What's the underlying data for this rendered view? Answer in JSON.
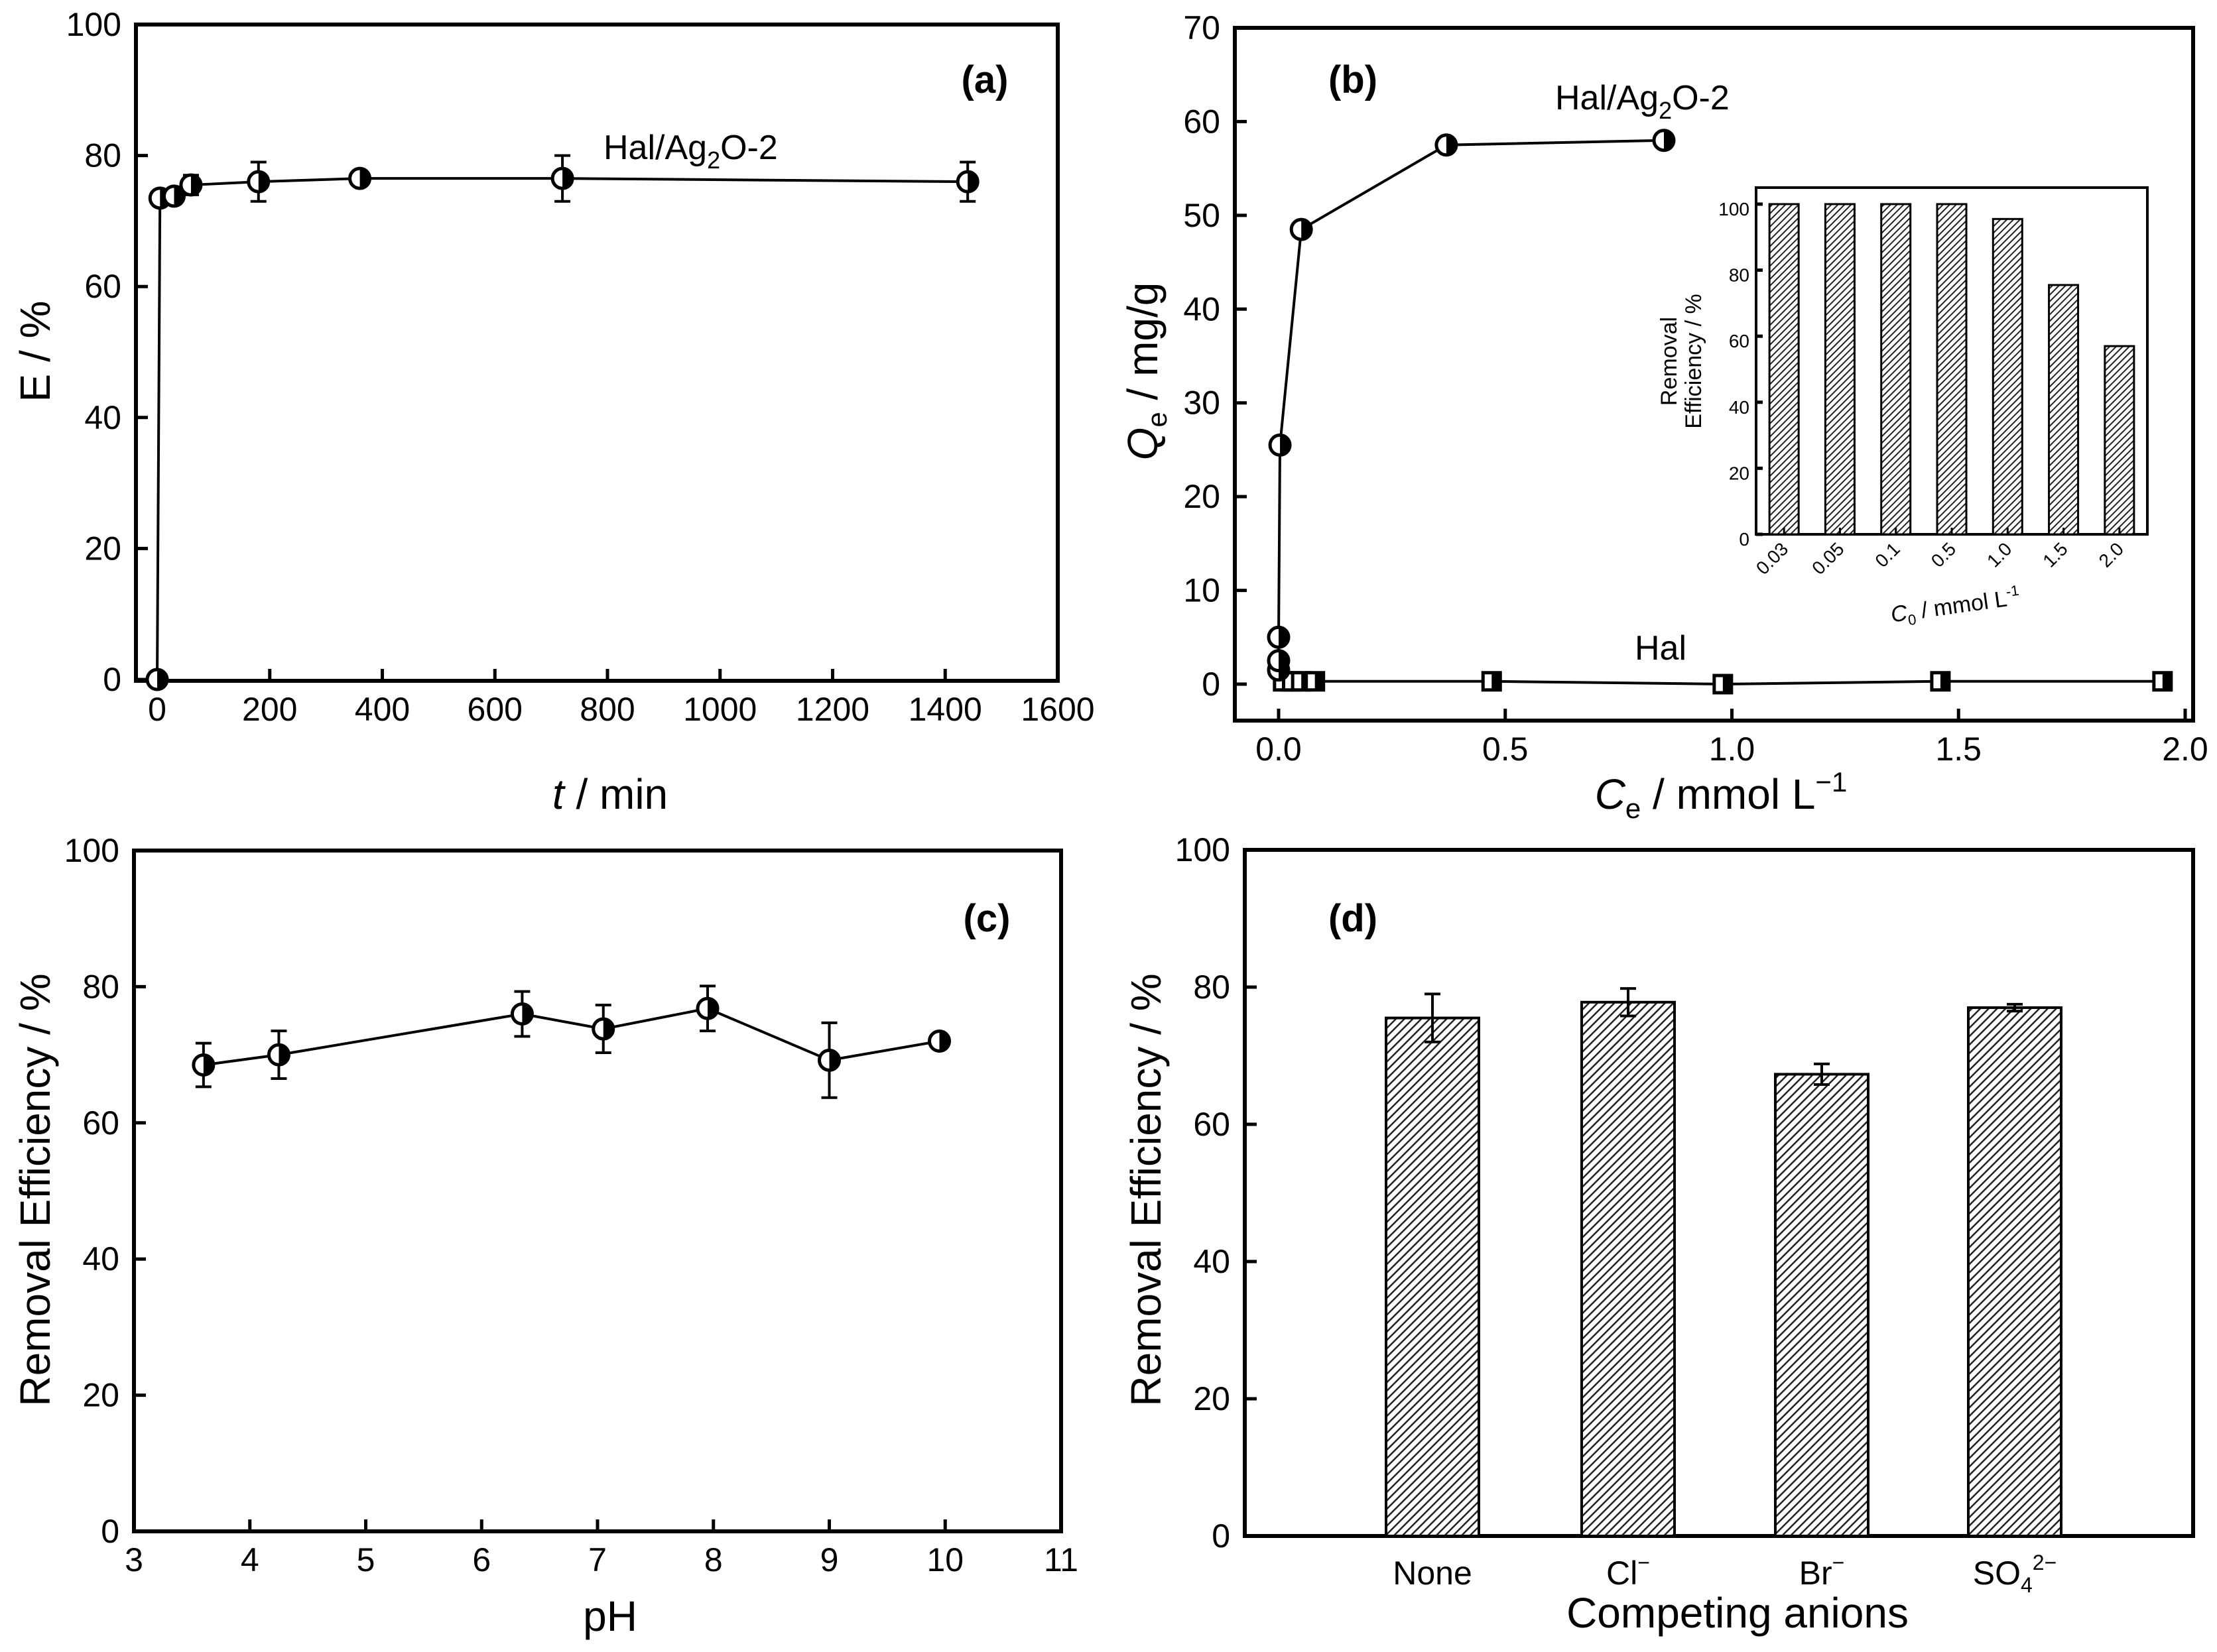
{
  "chart_data": [
    {
      "id": "a",
      "type": "scatter",
      "panel_label": "(a)",
      "xlabel": "t / min",
      "xlabel_italic": "t",
      "xlabel_rest": " / min",
      "ylabel": "E / %",
      "xlim": [
        -50,
        1600
      ],
      "ylim": [
        -5,
        100
      ],
      "xticks": [
        0,
        200,
        400,
        600,
        800,
        1000,
        1200,
        1400,
        1600
      ],
      "yticks": [
        0,
        20,
        40,
        60,
        80,
        100
      ],
      "series": [
        {
          "name": "Hal/Ag2O-2",
          "label_main": "Hal/Ag",
          "label_sub": "2",
          "label_tail": "O-2",
          "x": [
            0,
            5,
            30,
            60,
            180,
            360,
            720,
            1440
          ],
          "y": [
            0,
            73.5,
            73.8,
            75.5,
            76,
            76.5,
            76.5,
            76
          ],
          "err": [
            0,
            1,
            1,
            1.5,
            3,
            1,
            3.5,
            3
          ]
        }
      ]
    },
    {
      "id": "b",
      "type": "scatter",
      "panel_label": "(b)",
      "xlabel": "Ce / mmol L-1",
      "xlabel_italic": "C",
      "xlabel_sub": "e",
      "xlabel_rest": " / mmol L",
      "xlabel_sup": "−1",
      "ylabel": "Qe / mg/g",
      "ylabel_main": "Q",
      "ylabel_sub": "e",
      "ylabel_rest": " / mg/g",
      "xlim": [
        -0.05,
        2.0
      ],
      "ylim": [
        -3,
        70
      ],
      "xticks": [
        0.0,
        0.5,
        1.0,
        1.5,
        2.0
      ],
      "xtick_labels": [
        "0.0",
        "0.5",
        "1.0",
        "1.5",
        "2.0"
      ],
      "yticks": [
        0,
        10,
        20,
        30,
        40,
        50,
        60,
        70
      ],
      "series": [
        {
          "name": "Hal/Ag2O-2",
          "label_main": "Hal/Ag",
          "label_sub": "2",
          "label_tail": "O-2",
          "x": [
            0.0,
            0.0,
            0.0,
            0.003,
            0.05,
            0.37,
            0.85
          ],
          "y": [
            1.5,
            2.5,
            5,
            25.5,
            48.5,
            57.5,
            58
          ],
          "marker": "circle"
        },
        {
          "name": "Hal",
          "x": [
            0.01,
            0.03,
            0.05,
            0.08,
            0.47,
            0.98,
            1.46,
            1.95
          ],
          "y": [
            0.3,
            0.3,
            0.3,
            0.3,
            0.3,
            0,
            0.3,
            0.3
          ],
          "marker": "square"
        }
      ],
      "inset": {
        "type": "bar",
        "categories": [
          "0.03",
          "0.05",
          "0.1",
          "0.5",
          "1.0",
          "1.5",
          "2.0"
        ],
        "values": [
          100,
          100,
          100,
          100,
          95.5,
          75.5,
          57
        ],
        "ylim": [
          0,
          105
        ],
        "yticks": [
          0,
          20,
          40,
          60,
          80,
          100
        ],
        "ylabel_line1": "Removal",
        "ylabel_line2": "Efficiency / %",
        "xlabel_main": "C",
        "xlabel_sub": "0",
        "xlabel_rest": " / mmol L",
        "xlabel_sup": "-1"
      }
    },
    {
      "id": "c",
      "type": "scatter",
      "panel_label": "(c)",
      "xlabel": "pH",
      "ylabel": "Removal Efficiency / %",
      "xlim": [
        3,
        11
      ],
      "ylim": [
        0,
        100
      ],
      "xticks": [
        3,
        4,
        5,
        6,
        7,
        8,
        9,
        10,
        11
      ],
      "yticks": [
        0,
        20,
        40,
        60,
        80,
        100
      ],
      "series": [
        {
          "name": "pH dependence",
          "x": [
            3.6,
            4.25,
            6.35,
            7.05,
            7.95,
            9.0,
            9.95
          ],
          "y": [
            68.5,
            70,
            76,
            73.8,
            76.8,
            69.2,
            72
          ],
          "err": [
            3.2,
            3.5,
            3.3,
            3.5,
            3.3,
            5.5,
            0.5
          ]
        }
      ]
    },
    {
      "id": "d",
      "type": "bar",
      "panel_label": "(d)",
      "xlabel": "Competing anions",
      "ylabel": "Removal Efficiency / %",
      "ylim": [
        0,
        100
      ],
      "yticks": [
        0,
        20,
        40,
        60,
        80,
        100
      ],
      "categories": [
        "None",
        "Cl−",
        "Br−",
        "SO42−"
      ],
      "category_labels": [
        {
          "main": "None",
          "sub": "",
          "sup": ""
        },
        {
          "main": "Cl",
          "sub": "",
          "sup": "−"
        },
        {
          "main": "Br",
          "sub": "",
          "sup": "−"
        },
        {
          "main": "SO",
          "sub": "4",
          "sup": "2−"
        }
      ],
      "values": [
        75.5,
        77.8,
        67.3,
        77
      ],
      "err": [
        3.5,
        2,
        1.5,
        0.5
      ]
    }
  ]
}
